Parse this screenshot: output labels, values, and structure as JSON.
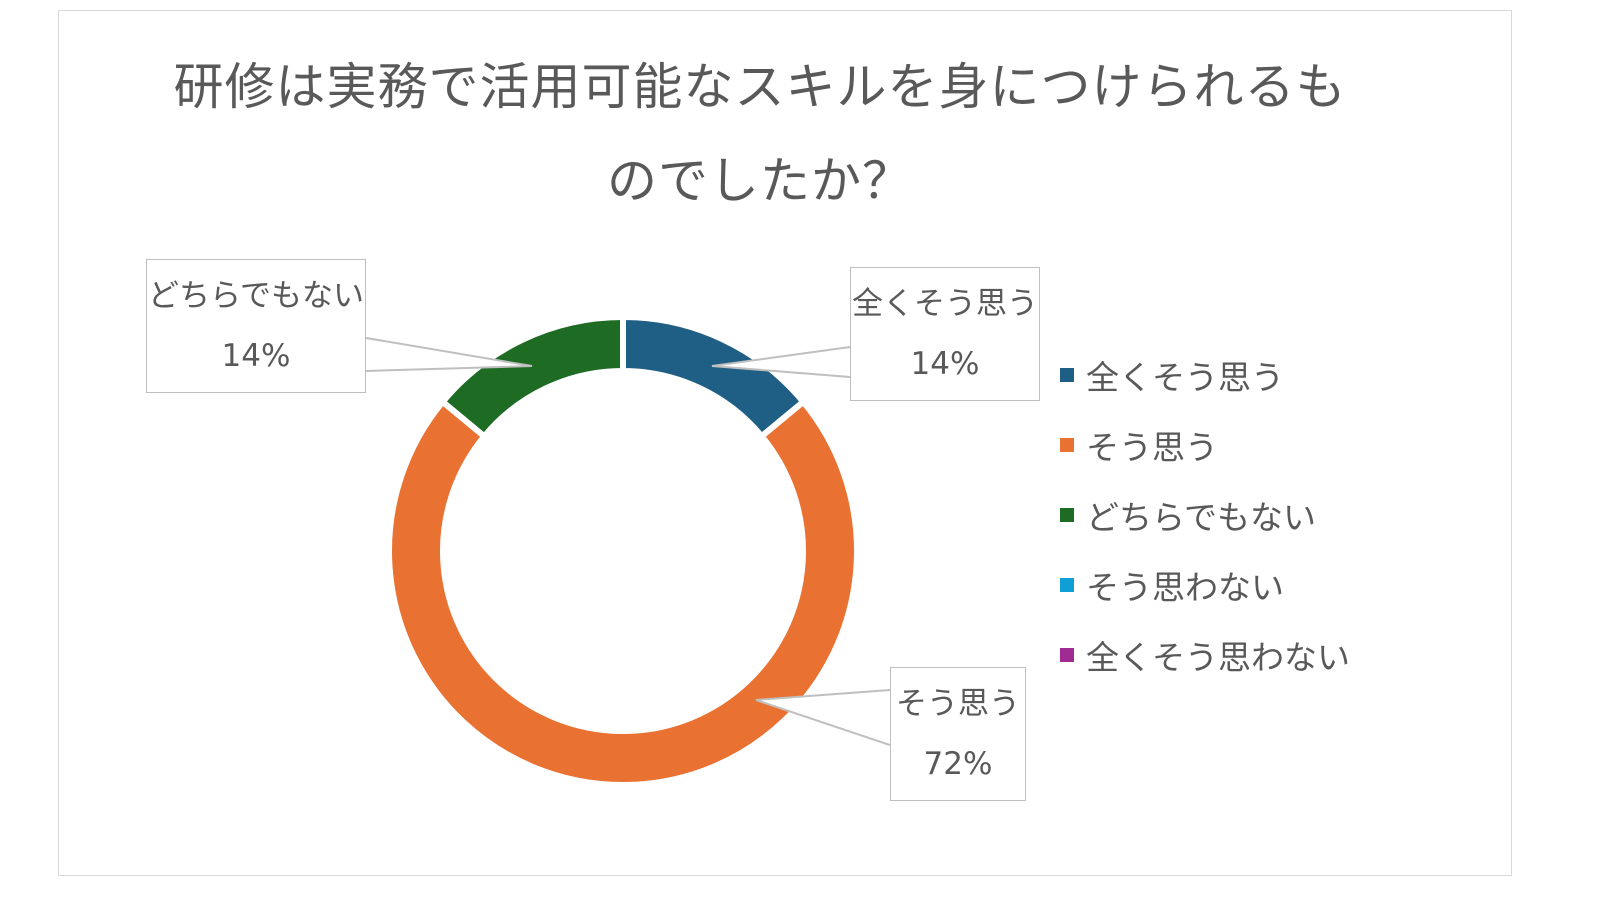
{
  "chart_data": {
    "type": "pie",
    "variant": "donut",
    "title": "研修は実務で活用可能なスキルを身につけられるものでしたか？",
    "title_lines": [
      "研修は実務で活用可能なスキルを身につけられるも",
      "のでしたか？"
    ],
    "categories": [
      "全くそう思う",
      "そう思う",
      "どちらでもない",
      "そう思わない",
      "全くそう思わない"
    ],
    "values": [
      14,
      72,
      14,
      0,
      0
    ],
    "value_labels": [
      "14%",
      "72%",
      "14%",
      "",
      ""
    ],
    "colors": [
      "#1f5f86",
      "#e97132",
      "#1e6b24",
      "#0f9ed5",
      "#a02b93"
    ],
    "legend": {
      "position": "right",
      "entries": [
        "全くそう思う",
        "そう思う",
        "どちらでもない",
        "そう思わない",
        "全くそう思わない"
      ]
    },
    "data_labels": [
      {
        "category": "全くそう思う",
        "pct": "14%"
      },
      {
        "category": "そう思う",
        "pct": "72%"
      },
      {
        "category": "どちらでもない",
        "pct": "14%"
      }
    ]
  }
}
